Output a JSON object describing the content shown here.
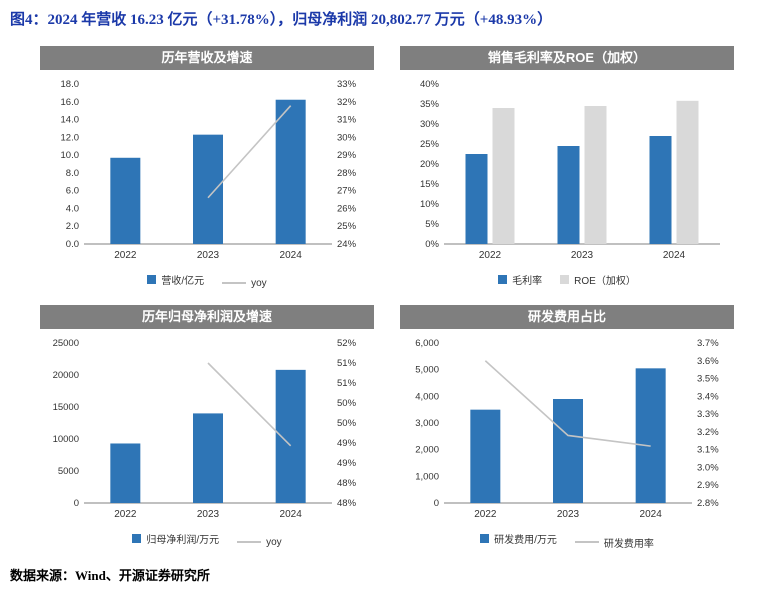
{
  "page": {
    "title": "图4：2024 年营收 16.23 亿元（+31.78%），归母净利润 20,802.77 万元（+48.93%）",
    "source": "数据来源：Wind、开源证券研究所"
  },
  "colors": {
    "bar_blue": "#2E75B6",
    "bar_gray": "#D9D9D9",
    "line_gray": "#C4C4C4",
    "header_bg": "#7F7F7F",
    "title_blue": "#1B39A9"
  },
  "chart_data": [
    {
      "type": "bar",
      "title": "历年营收及增速",
      "categories": [
        "2022",
        "2023",
        "2024"
      ],
      "series": [
        {
          "name": "营收/亿元",
          "kind": "bar",
          "axis": "left",
          "color": "#2E75B6",
          "values": [
            9.7,
            12.3,
            16.23
          ]
        },
        {
          "name": "yoy",
          "kind": "line",
          "axis": "right",
          "color": "#C4C4C4",
          "values": [
            null,
            26.6,
            31.78
          ]
        }
      ],
      "left_axis": {
        "min": 0,
        "max": 18,
        "ticks": [
          "0.0",
          "2.0",
          "4.0",
          "6.0",
          "8.0",
          "10.0",
          "12.0",
          "14.0",
          "16.0",
          "18.0"
        ]
      },
      "right_axis": {
        "min": 24,
        "max": 33,
        "ticks": [
          "24%",
          "25%",
          "26%",
          "27%",
          "28%",
          "29%",
          "30%",
          "31%",
          "32%",
          "33%"
        ]
      },
      "legend_position": "bottom",
      "grid": false
    },
    {
      "type": "bar",
      "title": "销售毛利率及ROE（加权）",
      "categories": [
        "2022",
        "2023",
        "2024"
      ],
      "series": [
        {
          "name": "毛利率",
          "kind": "bar",
          "axis": "left",
          "color": "#2E75B6",
          "values": [
            22.5,
            24.5,
            27
          ]
        },
        {
          "name": "ROE（加权）",
          "kind": "bar",
          "axis": "left",
          "color": "#D9D9D9",
          "values": [
            34,
            34.5,
            35.8
          ]
        }
      ],
      "left_axis": {
        "min": 0,
        "max": 40,
        "ticks": [
          "0%",
          "5%",
          "10%",
          "15%",
          "20%",
          "25%",
          "30%",
          "35%",
          "40%"
        ]
      },
      "right_axis": null,
      "legend_position": "bottom",
      "grid": false
    },
    {
      "type": "bar",
      "title": "历年归母净利润及增速",
      "categories": [
        "2022",
        "2023",
        "2024"
      ],
      "series": [
        {
          "name": "归母净利润/万元",
          "kind": "bar",
          "axis": "left",
          "color": "#2E75B6",
          "values": [
            9300,
            14000,
            20802.77
          ]
        },
        {
          "name": "yoy",
          "kind": "line",
          "axis": "right",
          "color": "#C4C4C4",
          "values": [
            null,
            51.0,
            48.93
          ]
        }
      ],
      "left_axis": {
        "min": 0,
        "max": 25000,
        "ticks": [
          "0",
          "5000",
          "10000",
          "15000",
          "20000",
          "25000"
        ]
      },
      "right_axis": {
        "min": 47.5,
        "max": 51.5,
        "ticks": [
          "48%",
          "48%",
          "49%",
          "49%",
          "50%",
          "50%",
          "51%",
          "51%",
          "52%"
        ]
      },
      "legend_position": "bottom",
      "grid": false
    },
    {
      "type": "bar",
      "title": "研发费用占比",
      "categories": [
        "2022",
        "2023",
        "2024"
      ],
      "series": [
        {
          "name": "研发费用/万元",
          "kind": "bar",
          "axis": "left",
          "color": "#2E75B6",
          "values": [
            3500,
            3900,
            5050
          ]
        },
        {
          "name": "研发费用率",
          "kind": "line",
          "axis": "right",
          "color": "#C4C4C4",
          "values": [
            3.6,
            3.18,
            3.12
          ]
        }
      ],
      "left_axis": {
        "min": 0,
        "max": 6000,
        "ticks": [
          "0",
          "1,000",
          "2,000",
          "3,000",
          "4,000",
          "5,000",
          "6,000"
        ]
      },
      "right_axis": {
        "min": 2.8,
        "max": 3.7,
        "ticks": [
          "2.8%",
          "2.9%",
          "3.0%",
          "3.1%",
          "3.2%",
          "3.3%",
          "3.4%",
          "3.5%",
          "3.6%",
          "3.7%"
        ]
      },
      "legend_position": "bottom",
      "grid": false
    }
  ]
}
